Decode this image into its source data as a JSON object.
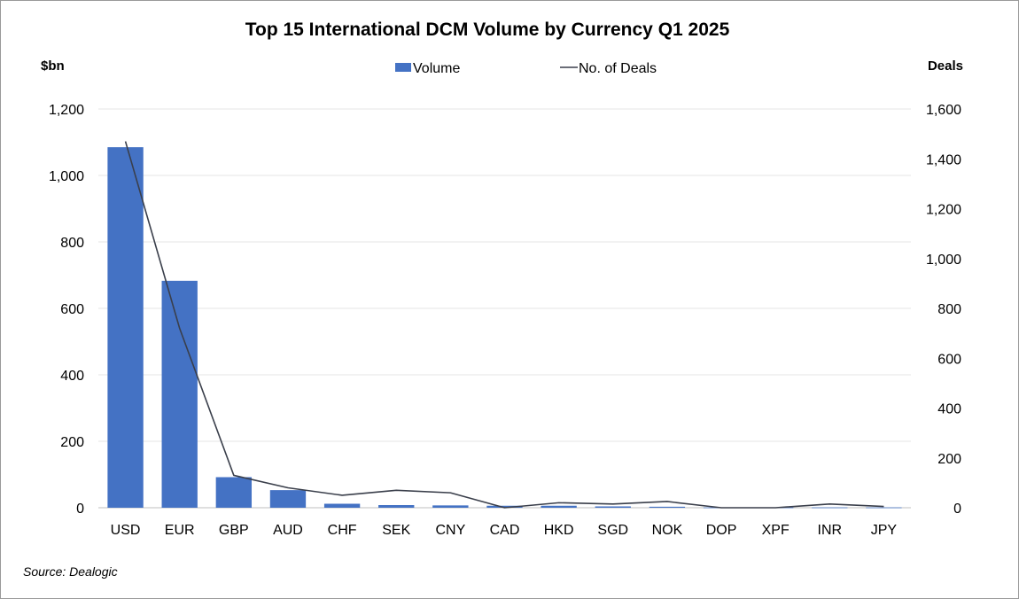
{
  "chart_data": {
    "type": "bar",
    "title": "Top 15 International DCM Volume by Currency Q1 2025",
    "categories": [
      "USD",
      "EUR",
      "GBP",
      "AUD",
      "CHF",
      "SEK",
      "CNY",
      "CAD",
      "HKD",
      "SGD",
      "NOK",
      "DOP",
      "XPF",
      "INR",
      "JPY"
    ],
    "series": [
      {
        "name": "Volume",
        "type": "bar",
        "axis": "left",
        "color": "#4472c4",
        "values": [
          1085,
          683,
          92,
          53,
          12,
          8,
          7,
          6,
          6,
          4,
          3,
          1,
          1,
          1,
          1
        ]
      },
      {
        "name": "No. of Deals",
        "type": "line",
        "axis": "right",
        "color": "#3a3f4b",
        "values": [
          1470,
          720,
          130,
          80,
          50,
          70,
          60,
          0,
          20,
          15,
          25,
          0,
          0,
          15,
          5
        ]
      }
    ],
    "ylabel_left": "$bn",
    "ylabel_right": "Deals",
    "ylim_left": [
      0,
      1200
    ],
    "ylim_right": [
      0,
      1600
    ],
    "yticks_left": [
      "0",
      "200",
      "400",
      "600",
      "800",
      "1,000",
      "1,200"
    ],
    "yticks_right": [
      "0",
      "200",
      "400",
      "600",
      "800",
      "1,000",
      "1,200",
      "1,400",
      "1,600"
    ],
    "grid": true,
    "legend_position": "top-center",
    "source": "Source: Dealogic"
  }
}
